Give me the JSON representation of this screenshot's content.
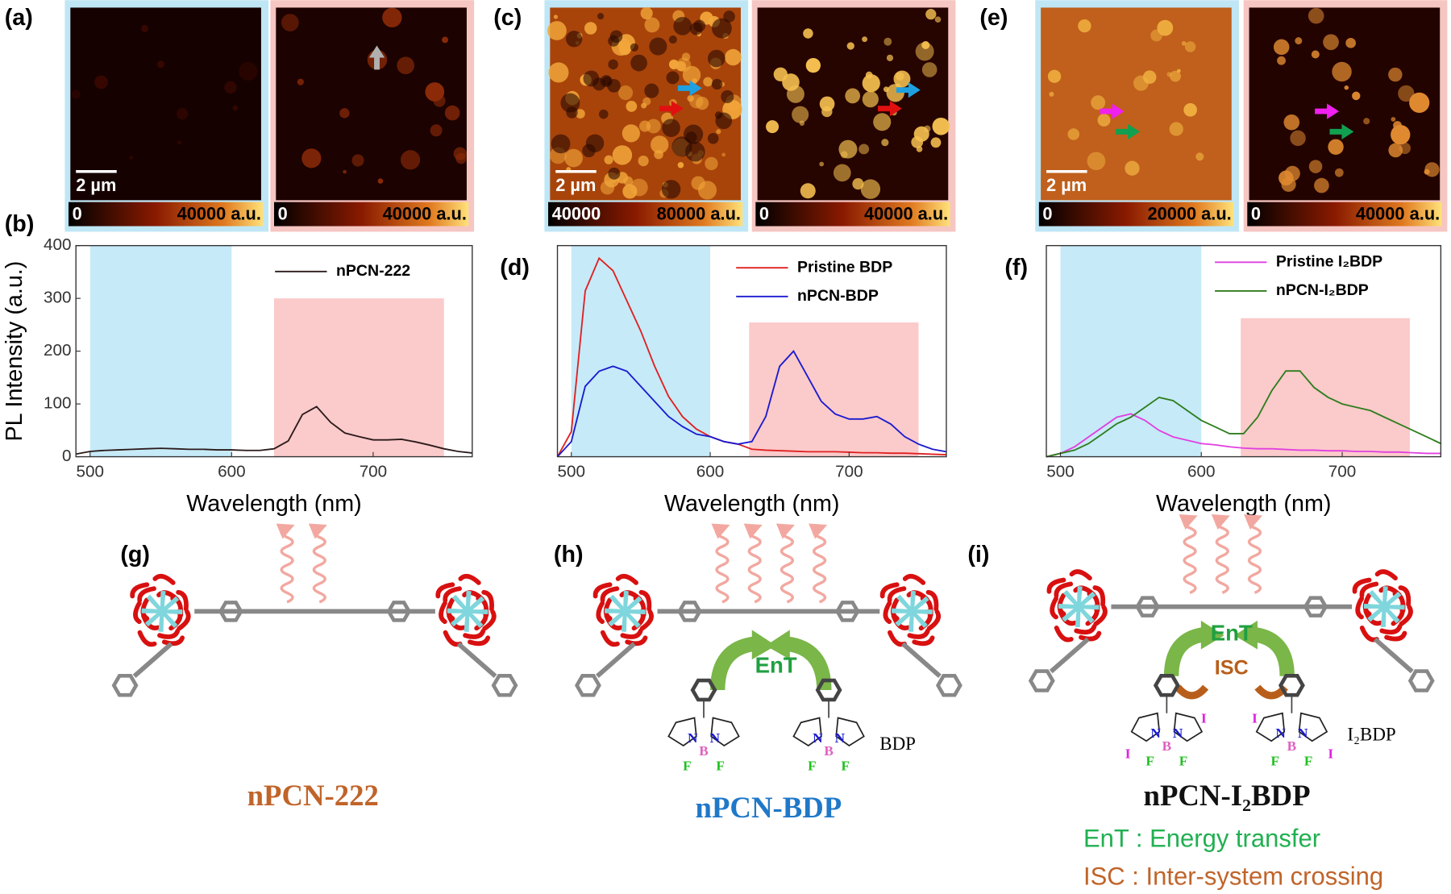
{
  "panel_labels": [
    "(a)",
    "(b)",
    "(c)",
    "(d)",
    "(e)",
    "(f)",
    "(g)",
    "(h)",
    "(i)"
  ],
  "images": [
    {
      "scale_bar": "2 µm",
      "colorbar": [
        "0",
        "40000 a.u."
      ]
    },
    {
      "colorbar": [
        "0",
        "40000 a.u."
      ]
    },
    {
      "scale_bar": "2 µm",
      "colorbar": [
        "40000",
        "80000 a.u."
      ]
    },
    {
      "colorbar": [
        "0",
        "40000 a.u."
      ]
    },
    {
      "scale_bar": "2 µm",
      "colorbar": [
        "0",
        "20000 a.u."
      ]
    },
    {
      "colorbar": [
        "0",
        "40000 a.u."
      ]
    }
  ],
  "chart_data": [
    {
      "type": "line",
      "xlabel": "Wavelength (nm)",
      "ylabel": "PL Intensity (a.u.)",
      "x": [
        490,
        500,
        510,
        520,
        530,
        540,
        550,
        560,
        570,
        580,
        590,
        600,
        610,
        620,
        630,
        640,
        650,
        660,
        670,
        680,
        690,
        700,
        710,
        720,
        730,
        740,
        750,
        760,
        770
      ],
      "xlim": [
        490,
        770
      ],
      "ylim": [
        0,
        400
      ],
      "xticks": [
        500,
        600,
        700
      ],
      "yticks": [
        0,
        100,
        200,
        300,
        400
      ],
      "spans": [
        {
          "x": [
            500,
            600
          ],
          "y": [
            0,
            400
          ],
          "color": "#c6eaf8"
        },
        {
          "x": [
            630,
            750
          ],
          "y": [
            0,
            300
          ],
          "color": "#fbcaca"
        }
      ],
      "series": [
        {
          "name": "nPCN-222",
          "color": "#2b1a1a",
          "values": [
            5,
            10,
            12,
            13,
            14,
            15,
            16,
            15,
            14,
            14,
            13,
            13,
            12,
            12,
            15,
            30,
            80,
            95,
            65,
            45,
            38,
            32,
            32,
            33,
            28,
            22,
            15,
            10,
            7
          ]
        }
      ]
    },
    {
      "type": "line",
      "xlabel": "Wavelength (nm)",
      "x": [
        490,
        500,
        510,
        520,
        530,
        540,
        550,
        560,
        570,
        580,
        590,
        600,
        610,
        620,
        630,
        640,
        650,
        660,
        670,
        680,
        690,
        700,
        710,
        720,
        730,
        740,
        750,
        760,
        770
      ],
      "xlim": [
        490,
        770
      ],
      "ylim": [
        0,
        420
      ],
      "xticks": [
        500,
        600,
        700
      ],
      "spans": [
        {
          "x": [
            500,
            600
          ],
          "y": [
            0,
            420
          ],
          "color": "#c6eaf8"
        },
        {
          "x": [
            628,
            750
          ],
          "y": [
            0,
            267
          ],
          "color": "#fbcaca"
        }
      ],
      "series": [
        {
          "name": "Pristine BDP",
          "color": "#e02020",
          "values": [
            0,
            50,
            330,
            395,
            370,
            310,
            250,
            180,
            120,
            80,
            55,
            40,
            30,
            25,
            15,
            13,
            12,
            11,
            10,
            10,
            10,
            9,
            8,
            8,
            7,
            7,
            6,
            5,
            4
          ]
        },
        {
          "name": "nPCN-BDP",
          "color": "#1a1ad0",
          "values": [
            0,
            30,
            140,
            170,
            180,
            170,
            140,
            110,
            80,
            60,
            45,
            40,
            30,
            25,
            30,
            80,
            180,
            210,
            160,
            110,
            85,
            75,
            75,
            80,
            65,
            40,
            25,
            15,
            10
          ]
        }
      ]
    },
    {
      "type": "line",
      "xlabel": "Wavelength (nm)",
      "x": [
        490,
        500,
        510,
        520,
        530,
        540,
        550,
        560,
        570,
        580,
        590,
        600,
        610,
        620,
        630,
        640,
        650,
        660,
        670,
        680,
        690,
        700,
        710,
        720,
        730,
        740,
        750,
        760,
        770
      ],
      "xlim": [
        490,
        770
      ],
      "ylim": [
        0,
        320
      ],
      "xticks": [
        500,
        600,
        700
      ],
      "spans": [
        {
          "x": [
            500,
            600
          ],
          "y": [
            0,
            320
          ],
          "color": "#c6eaf8"
        },
        {
          "x": [
            628,
            748
          ],
          "y": [
            0,
            210
          ],
          "color": "#fbcaca"
        }
      ],
      "series": [
        {
          "name": "Pristine I₂BDP",
          "color": "#e040e0",
          "values": [
            0,
            5,
            15,
            30,
            45,
            60,
            65,
            55,
            40,
            30,
            25,
            20,
            18,
            15,
            13,
            12,
            12,
            11,
            10,
            10,
            9,
            9,
            8,
            8,
            7,
            7,
            6,
            5,
            5
          ]
        },
        {
          "name": "nPCN-I₂BDP",
          "color": "#2e7d1e",
          "values": [
            0,
            5,
            10,
            20,
            35,
            50,
            60,
            75,
            90,
            85,
            70,
            55,
            45,
            35,
            35,
            60,
            100,
            130,
            130,
            105,
            90,
            80,
            75,
            70,
            60,
            50,
            40,
            30,
            20
          ]
        }
      ]
    }
  ],
  "structures": [
    {
      "name": "nPCN-222"
    },
    {
      "name": "nPCN-BDP",
      "ligand": "BDP",
      "arrows": [
        "EnT"
      ],
      "atoms": [
        "N",
        "N",
        "B",
        "F",
        "F"
      ]
    },
    {
      "name": "nPCN-I₂BDP",
      "ligand": "I₂BDP",
      "arrows": [
        "EnT",
        "ISC"
      ],
      "atoms": [
        "N",
        "N",
        "B",
        "F",
        "F",
        "I",
        "I"
      ]
    }
  ],
  "notes": [
    "EnT : Energy transfer",
    "ISC : Inter-system crossing"
  ]
}
